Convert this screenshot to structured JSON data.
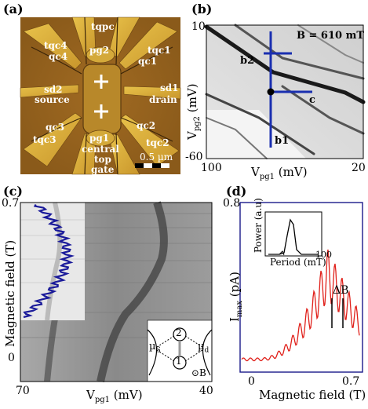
{
  "panels": {
    "a": {
      "letter": "(a)",
      "gate_labels": {
        "tqpc": "tqpc",
        "pg2": "pg2",
        "tqc4": "tqc4",
        "qc4": "qc4",
        "tqc1": "tqc1",
        "qc1": "qc1",
        "sd2": "sd2",
        "source": "source",
        "sd1": "sd1",
        "drain": "drain",
        "qc3": "qc3",
        "tqc3": "tqc3",
        "qc2": "qc2",
        "tqc2": "tqc2",
        "pg1": "pg1",
        "central": "central",
        "top": "top",
        "gate": "gate"
      },
      "scale_label": "0.5 µm",
      "colors": {
        "substrate": "#9a6a1e",
        "gates": "#d9b23c",
        "dark": "#5a3a10"
      }
    },
    "b": {
      "letter": "(b)",
      "field": "B = 610 mT",
      "y_tick_top": "10",
      "y_tick_bottom": "-60",
      "x_tick_left": "100",
      "x_tick_right": "20",
      "ylabel": "Vpg2 (mV)",
      "ylabel_main": "V",
      "ylabel_sub": "pg2",
      "ylabel_unit": " (mV)",
      "xlabel_main": "V",
      "xlabel_sub": "pg1",
      "xlabel_unit": " (mV)",
      "cut_labels": {
        "b1": "b1",
        "b2": "b2",
        "c": "c"
      },
      "cut_color": "#1a2fb0"
    },
    "c": {
      "letter": "(c)",
      "y_tick_top": "0.7",
      "y_tick_zero": "0",
      "x_tick_left": "70",
      "x_tick_right": "40",
      "ylabel": "Magnetic field (T)",
      "xlabel_main": "V",
      "xlabel_sub": "pg1",
      "xlabel_unit": " (mV)",
      "inset_labels": {
        "dot2": "2",
        "dot1": "1",
        "mus": "µ",
        "mus_sub": "S",
        "mud": "µ",
        "mud_sub": "d",
        "bsym": "⊙B"
      },
      "trace_color": "#1a1a9a"
    },
    "d": {
      "letter": "(d)",
      "y_tick_top": "0.8",
      "x_tick_left": "0",
      "x_tick_right": "0.7",
      "ylabel_main": "I",
      "ylabel_sub": "max",
      "ylabel_unit": " (pA)",
      "xlabel": "Magnetic field (T)",
      "delta_label": "ΔB",
      "inset": {
        "ylabel": "Power (a.u)",
        "xlabel": "Period (mT)",
        "x_tick": "100"
      },
      "trace_color": "#e0201a",
      "frame_color": "#1a1a8a"
    }
  }
}
